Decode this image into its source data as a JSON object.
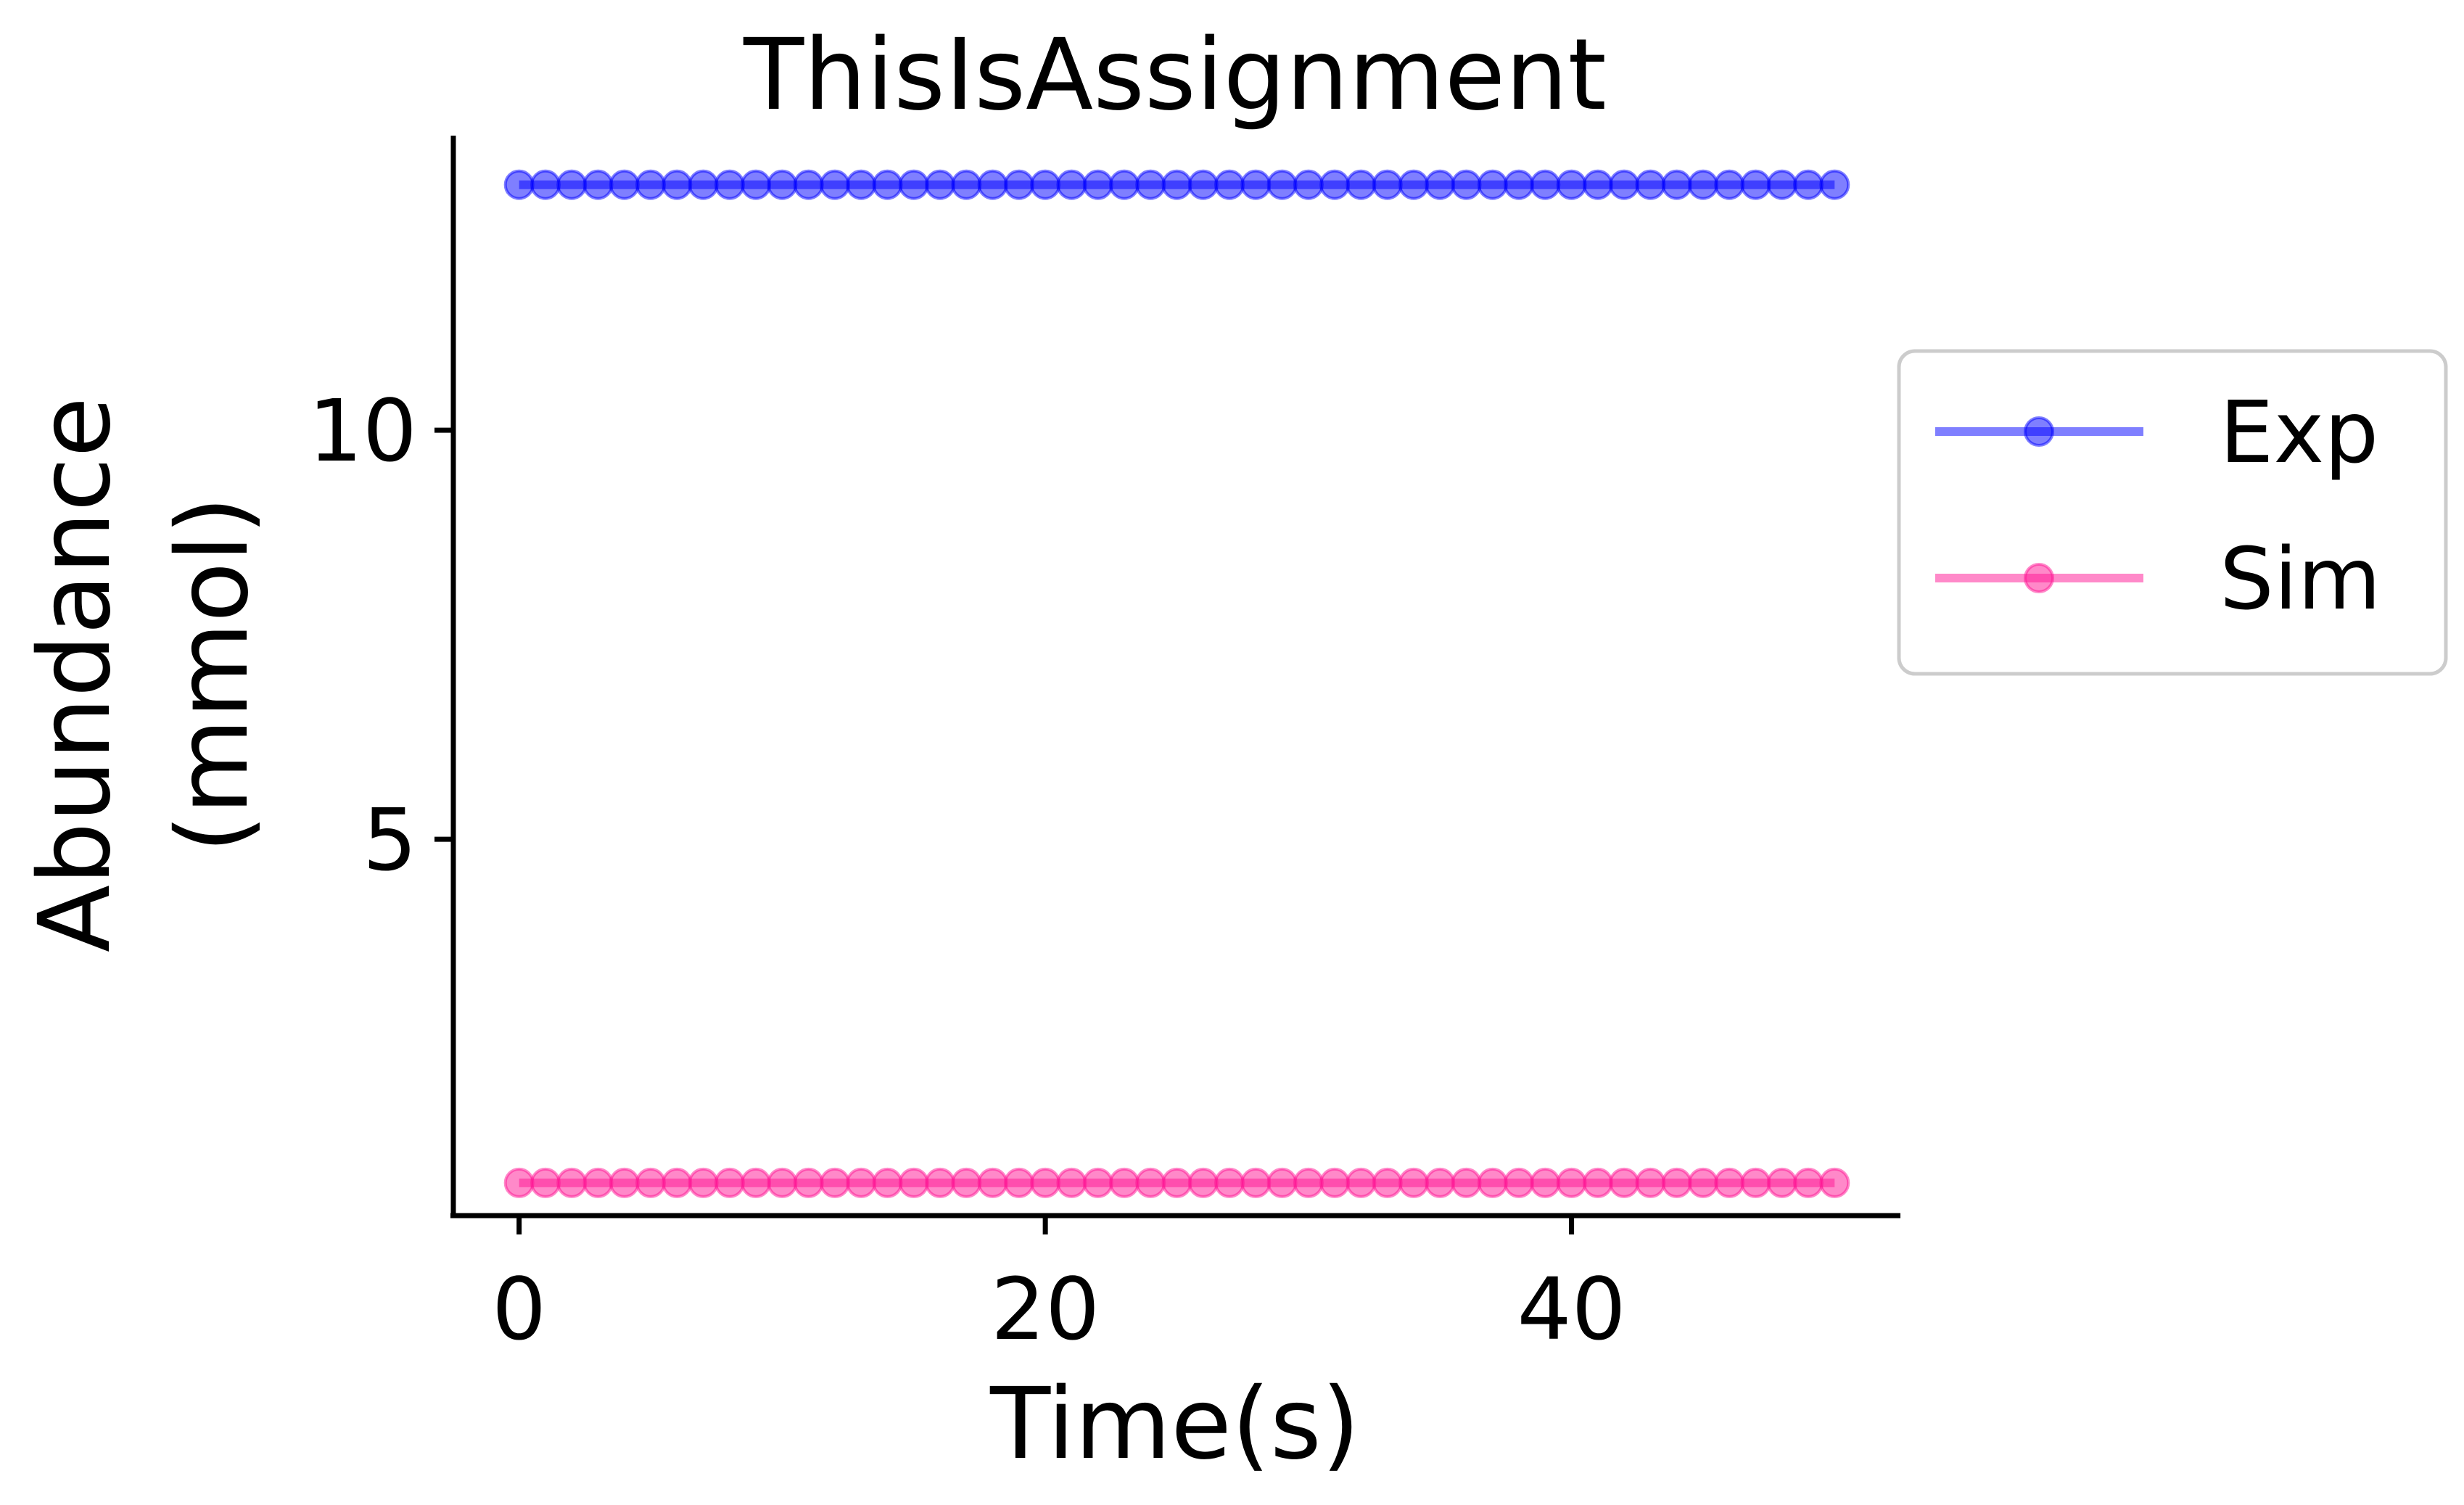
{
  "chart_data": {
    "type": "line",
    "title": "ThisIsAssignment",
    "xlabel": "Time(s)",
    "ylabel": [
      "Abundance",
      "(mmol)"
    ],
    "xlim": [
      -2.5,
      52.5
    ],
    "ylim": [
      0.4,
      13.6
    ],
    "xticks": [
      {
        "value": 0,
        "label": "0"
      },
      {
        "value": 20,
        "label": "20"
      },
      {
        "value": 40,
        "label": "40"
      }
    ],
    "yticks": [
      {
        "value": 5,
        "label": "5"
      },
      {
        "value": 10,
        "label": "10"
      }
    ],
    "x": [
      0,
      1,
      2,
      3,
      4,
      5,
      6,
      7,
      8,
      9,
      10,
      11,
      12,
      13,
      14,
      15,
      16,
      17,
      18,
      19,
      20,
      21,
      22,
      23,
      24,
      25,
      26,
      27,
      28,
      29,
      30,
      31,
      32,
      33,
      34,
      35,
      36,
      37,
      38,
      39,
      40,
      41,
      42,
      43,
      44,
      45,
      46,
      47,
      48,
      49,
      50
    ],
    "series": [
      {
        "name": "Exp",
        "color": "#0000ff",
        "constant_value": 13,
        "values": [
          13,
          13,
          13,
          13,
          13,
          13,
          13,
          13,
          13,
          13,
          13,
          13,
          13,
          13,
          13,
          13,
          13,
          13,
          13,
          13,
          13,
          13,
          13,
          13,
          13,
          13,
          13,
          13,
          13,
          13,
          13,
          13,
          13,
          13,
          13,
          13,
          13,
          13,
          13,
          13,
          13,
          13,
          13,
          13,
          13,
          13,
          13,
          13,
          13,
          13,
          13
        ]
      },
      {
        "name": "Sim",
        "color": "#ff1493",
        "constant_value": 0.8,
        "values": [
          0.8,
          0.8,
          0.8,
          0.8,
          0.8,
          0.8,
          0.8,
          0.8,
          0.8,
          0.8,
          0.8,
          0.8,
          0.8,
          0.8,
          0.8,
          0.8,
          0.8,
          0.8,
          0.8,
          0.8,
          0.8,
          0.8,
          0.8,
          0.8,
          0.8,
          0.8,
          0.8,
          0.8,
          0.8,
          0.8,
          0.8,
          0.8,
          0.8,
          0.8,
          0.8,
          0.8,
          0.8,
          0.8,
          0.8,
          0.8,
          0.8,
          0.8,
          0.8,
          0.8,
          0.8,
          0.8,
          0.8,
          0.8,
          0.8,
          0.8,
          0.8
        ]
      }
    ],
    "grid": false,
    "legend_position": "outside-right"
  }
}
